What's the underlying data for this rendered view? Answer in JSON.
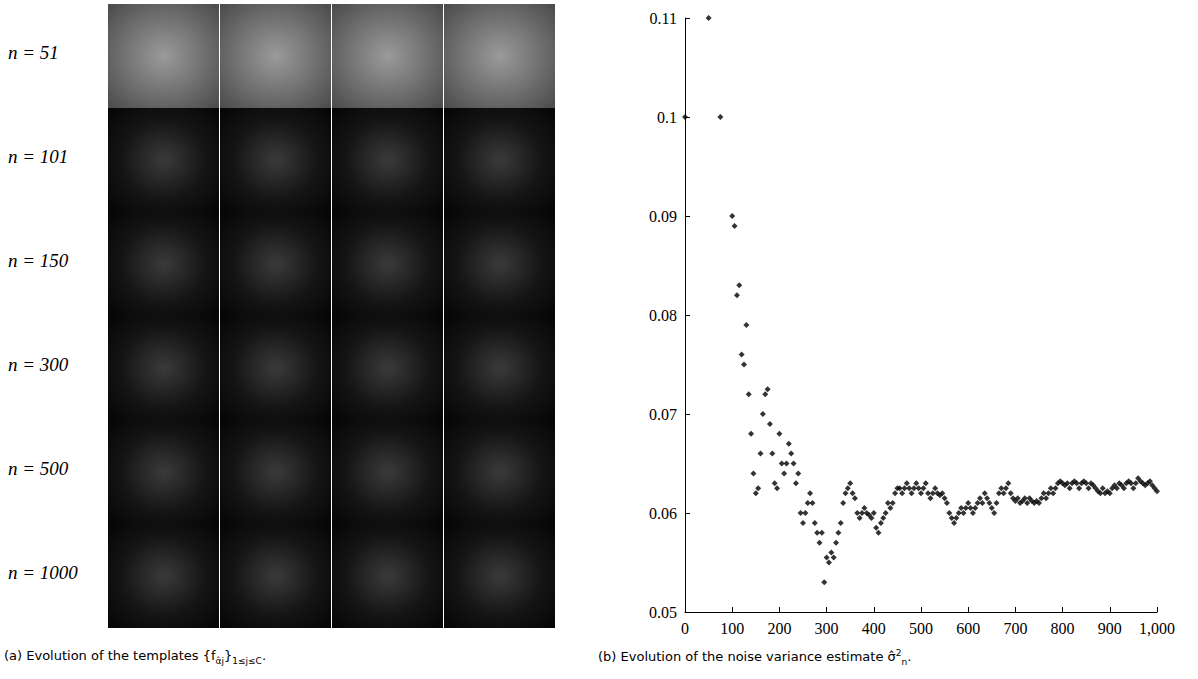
{
  "panel_a": {
    "row_labels": [
      "n = 51",
      "n = 101",
      "n = 150",
      "n = 300",
      "n = 500",
      "n = 1000"
    ],
    "caption": [
      {
        "t": "(a) Evolution of the templates {f"
      },
      {
        "sub": "α̂j"
      },
      {
        "t": "}"
      },
      {
        "sub": "1≤j≤C"
      },
      {
        "t": "."
      }
    ]
  },
  "chart_data": {
    "type": "scatter",
    "caption": [
      {
        "t": "(b) Evolution of the noise variance estimate σ̂"
      },
      {
        "sup": "2"
      },
      {
        "sub": "n"
      },
      {
        "t": "."
      }
    ],
    "color": "#000000",
    "marker": "diamond",
    "grid": false,
    "xlim": [
      0,
      1000
    ],
    "xticks": [
      0,
      100,
      200,
      300,
      400,
      500,
      600,
      700,
      800,
      900,
      1000
    ],
    "ylim": [
      0.05,
      0.11
    ],
    "yticks": [
      0.05,
      0.06,
      0.07,
      0.08,
      0.09,
      0.1,
      0.11
    ],
    "x": [
      0,
      50,
      75,
      100,
      105,
      110,
      115,
      120,
      125,
      130,
      135,
      140,
      145,
      150,
      155,
      160,
      165,
      170,
      175,
      180,
      185,
      190,
      195,
      200,
      205,
      210,
      215,
      220,
      225,
      230,
      235,
      240,
      245,
      250,
      255,
      260,
      265,
      270,
      275,
      280,
      285,
      290,
      295,
      300,
      305,
      310,
      315,
      320,
      325,
      330,
      335,
      340,
      345,
      350,
      355,
      360,
      365,
      370,
      375,
      380,
      385,
      390,
      395,
      400,
      405,
      410,
      415,
      420,
      425,
      430,
      435,
      440,
      445,
      450,
      455,
      460,
      465,
      470,
      475,
      480,
      485,
      490,
      495,
      500,
      505,
      510,
      515,
      520,
      525,
      530,
      535,
      540,
      545,
      550,
      555,
      560,
      565,
      570,
      575,
      580,
      585,
      590,
      595,
      600,
      605,
      610,
      615,
      620,
      625,
      630,
      635,
      640,
      645,
      650,
      655,
      660,
      665,
      670,
      675,
      680,
      685,
      690,
      695,
      700,
      705,
      710,
      715,
      720,
      725,
      730,
      735,
      740,
      745,
      750,
      755,
      760,
      765,
      770,
      775,
      780,
      785,
      790,
      795,
      800,
      805,
      810,
      815,
      820,
      825,
      830,
      835,
      840,
      845,
      850,
      855,
      860,
      865,
      870,
      875,
      880,
      885,
      890,
      895,
      900,
      905,
      910,
      915,
      920,
      925,
      930,
      935,
      940,
      945,
      950,
      955,
      960,
      965,
      970,
      975,
      980,
      985,
      990,
      995,
      1000
    ],
    "values": [
      0.1,
      0.11,
      0.1,
      0.09,
      0.089,
      0.082,
      0.083,
      0.076,
      0.075,
      0.079,
      0.072,
      0.068,
      0.064,
      0.062,
      0.0625,
      0.066,
      0.07,
      0.072,
      0.0725,
      0.069,
      0.066,
      0.063,
      0.0625,
      0.068,
      0.065,
      0.064,
      0.065,
      0.067,
      0.066,
      0.065,
      0.063,
      0.064,
      0.06,
      0.059,
      0.06,
      0.061,
      0.062,
      0.061,
      0.059,
      0.058,
      0.057,
      0.058,
      0.053,
      0.0555,
      0.055,
      0.056,
      0.0555,
      0.057,
      0.058,
      0.059,
      0.061,
      0.062,
      0.0625,
      0.063,
      0.062,
      0.0615,
      0.06,
      0.0595,
      0.06,
      0.0605,
      0.06,
      0.0598,
      0.0595,
      0.06,
      0.0585,
      0.058,
      0.059,
      0.0595,
      0.06,
      0.061,
      0.0605,
      0.061,
      0.062,
      0.0625,
      0.0625,
      0.062,
      0.0625,
      0.063,
      0.0625,
      0.062,
      0.0625,
      0.063,
      0.0625,
      0.062,
      0.0625,
      0.063,
      0.062,
      0.0615,
      0.062,
      0.0625,
      0.062,
      0.0618,
      0.062,
      0.0615,
      0.061,
      0.06,
      0.0595,
      0.059,
      0.0595,
      0.06,
      0.0605,
      0.06,
      0.0605,
      0.061,
      0.0605,
      0.06,
      0.0605,
      0.061,
      0.0615,
      0.061,
      0.062,
      0.0615,
      0.061,
      0.0605,
      0.06,
      0.061,
      0.062,
      0.0625,
      0.062,
      0.0625,
      0.063,
      0.062,
      0.0615,
      0.0612,
      0.0615,
      0.061,
      0.0612,
      0.0615,
      0.061,
      0.0615,
      0.0612,
      0.061,
      0.0612,
      0.061,
      0.0615,
      0.062,
      0.0615,
      0.062,
      0.0625,
      0.062,
      0.0625,
      0.063,
      0.0632,
      0.063,
      0.0628,
      0.063,
      0.0625,
      0.063,
      0.0632,
      0.063,
      0.0625,
      0.063,
      0.0632,
      0.063,
      0.0625,
      0.063,
      0.0628,
      0.0625,
      0.0622,
      0.062,
      0.0625,
      0.062,
      0.0622,
      0.062,
      0.0625,
      0.0628,
      0.0625,
      0.063,
      0.0628,
      0.0625,
      0.063,
      0.0632,
      0.063,
      0.0625,
      0.063,
      0.0635,
      0.0632,
      0.063,
      0.0628,
      0.063,
      0.0632,
      0.0628,
      0.0625,
      0.0622
    ]
  }
}
